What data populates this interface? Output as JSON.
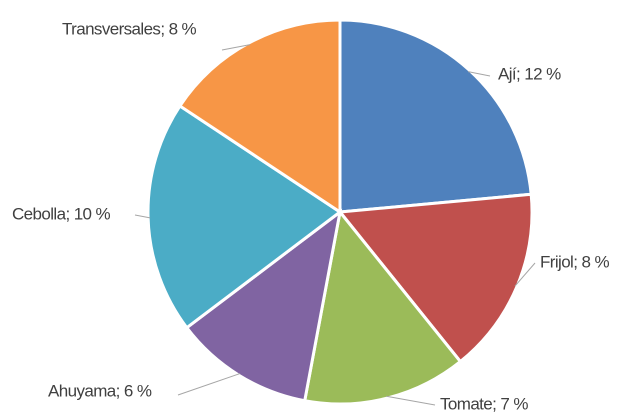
{
  "chart_data": {
    "type": "pie",
    "values": [
      12,
      8,
      7,
      6,
      10,
      8
    ],
    "value_labels": [
      "Ají; 12 %",
      "Frijol; 8 %",
      "Tomate; 7 %",
      "Ahuyama; 6 %",
      "Cebolla; 10 %",
      "Transversales; 8 %"
    ],
    "colors": [
      "#4f81bd",
      "#c0504d",
      "#9bbb59",
      "#8064a2",
      "#4bacc6",
      "#f79646"
    ]
  }
}
